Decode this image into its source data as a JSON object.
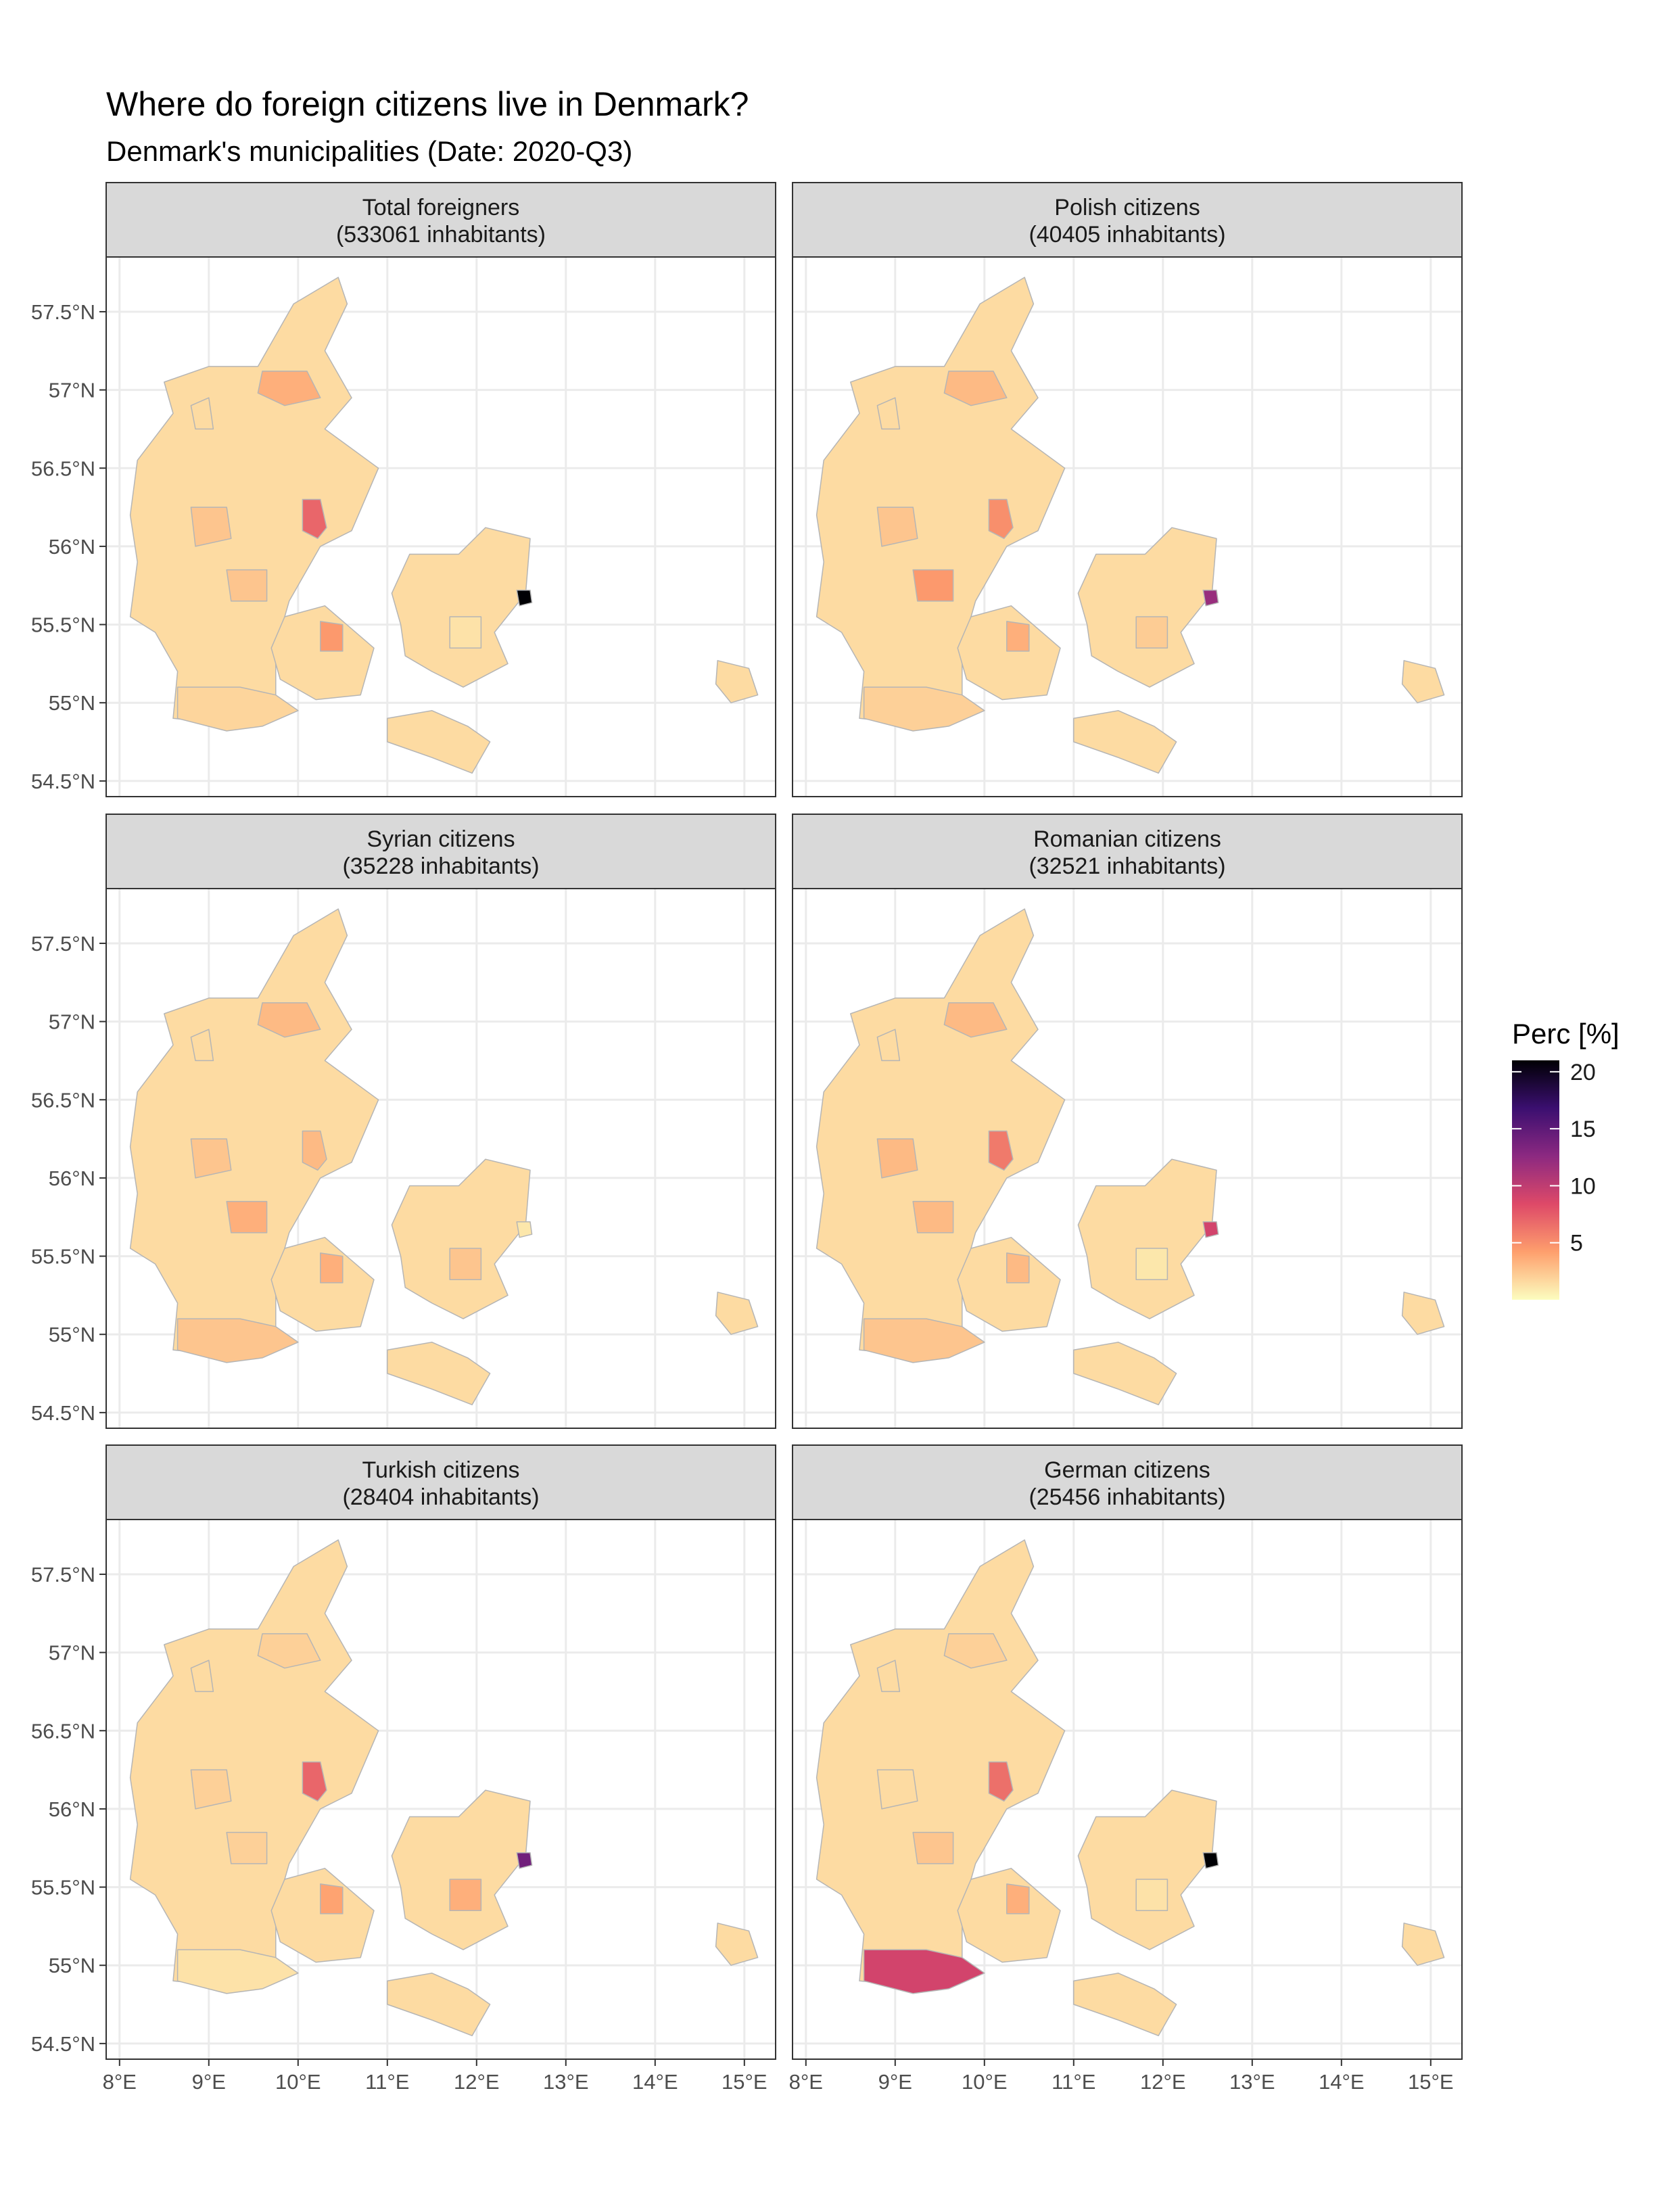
{
  "title": "Where do foreign citizens live in Denmark?",
  "subtitle": "Denmark's municipalities (Date: 2020-Q3)",
  "legend": {
    "title": "Perc [%]",
    "ticks": [
      "5",
      "10",
      "15",
      "20"
    ],
    "tick_values": [
      5,
      10,
      15,
      20
    ],
    "range": [
      0,
      21
    ],
    "colors": [
      "#fcfdbf",
      "#fe9f6d",
      "#de4968",
      "#8c2981",
      "#3b0f70",
      "#000004"
    ]
  },
  "axes": {
    "y_ticks": [
      "57.5°N",
      "57°N",
      "56.5°N",
      "56°N",
      "55.5°N",
      "55°N",
      "54.5°N"
    ],
    "y_values": [
      57.5,
      57.0,
      56.5,
      56.0,
      55.5,
      55.0,
      54.5
    ],
    "x_ticks": [
      "8°E",
      "9°E",
      "10°E",
      "11°E",
      "12°E",
      "13°E",
      "14°E",
      "15°E"
    ],
    "x_values": [
      8,
      9,
      10,
      11,
      12,
      13,
      14,
      15
    ],
    "xlim": [
      7.85,
      15.35
    ],
    "ylim": [
      54.4,
      57.85
    ]
  },
  "panels": [
    {
      "strip_line1": "Total foreigners",
      "strip_line2": "(533061 inhabitants)",
      "highlights": {
        "copenhagen": 21,
        "aarhus": 7,
        "aalborg": 3.5,
        "odense": 4.5,
        "herning": 2.5,
        "vejle": 2.5,
        "south": 1.8,
        "ringsted": 1.2
      }
    },
    {
      "strip_line1": "Polish citizens",
      "strip_line2": "(40405 inhabitants)",
      "highlights": {
        "copenhagen": 12,
        "aarhus": 5,
        "aalborg": 3,
        "odense": 3.5,
        "herning": 2.5,
        "vejle": 4.5,
        "south": 2,
        "ringsted": 2.2
      }
    },
    {
      "strip_line1": "Syrian citizens",
      "strip_line2": "(35228 inhabitants)",
      "highlights": {
        "copenhagen": 1,
        "aarhus": 3,
        "aalborg": 3,
        "odense": 3.5,
        "herning": 2.5,
        "vejle": 3.5,
        "south": 2.5,
        "ringsted": 2.5
      }
    },
    {
      "strip_line1": "Romanian citizens",
      "strip_line2": "(32521 inhabitants)",
      "highlights": {
        "copenhagen": 9,
        "aarhus": 6,
        "aalborg": 3,
        "odense": 3,
        "herning": 3,
        "vejle": 3,
        "south": 2.5,
        "ringsted": 1
      }
    },
    {
      "strip_line1": "Turkish citizens",
      "strip_line2": "(28404 inhabitants)",
      "highlights": {
        "copenhagen": 14,
        "aarhus": 7,
        "aalborg": 2,
        "odense": 4,
        "herning": 2,
        "vejle": 2,
        "south": 1.2,
        "ringsted": 3.5
      }
    },
    {
      "strip_line1": "German citizens",
      "strip_line2": "(25456 inhabitants)",
      "highlights": {
        "copenhagen": 21,
        "aarhus": 6.5,
        "aalborg": 2,
        "odense": 3.5,
        "herning": 1.5,
        "vejle": 2.5,
        "south": 9,
        "ringsted": 1.2
      }
    }
  ]
}
